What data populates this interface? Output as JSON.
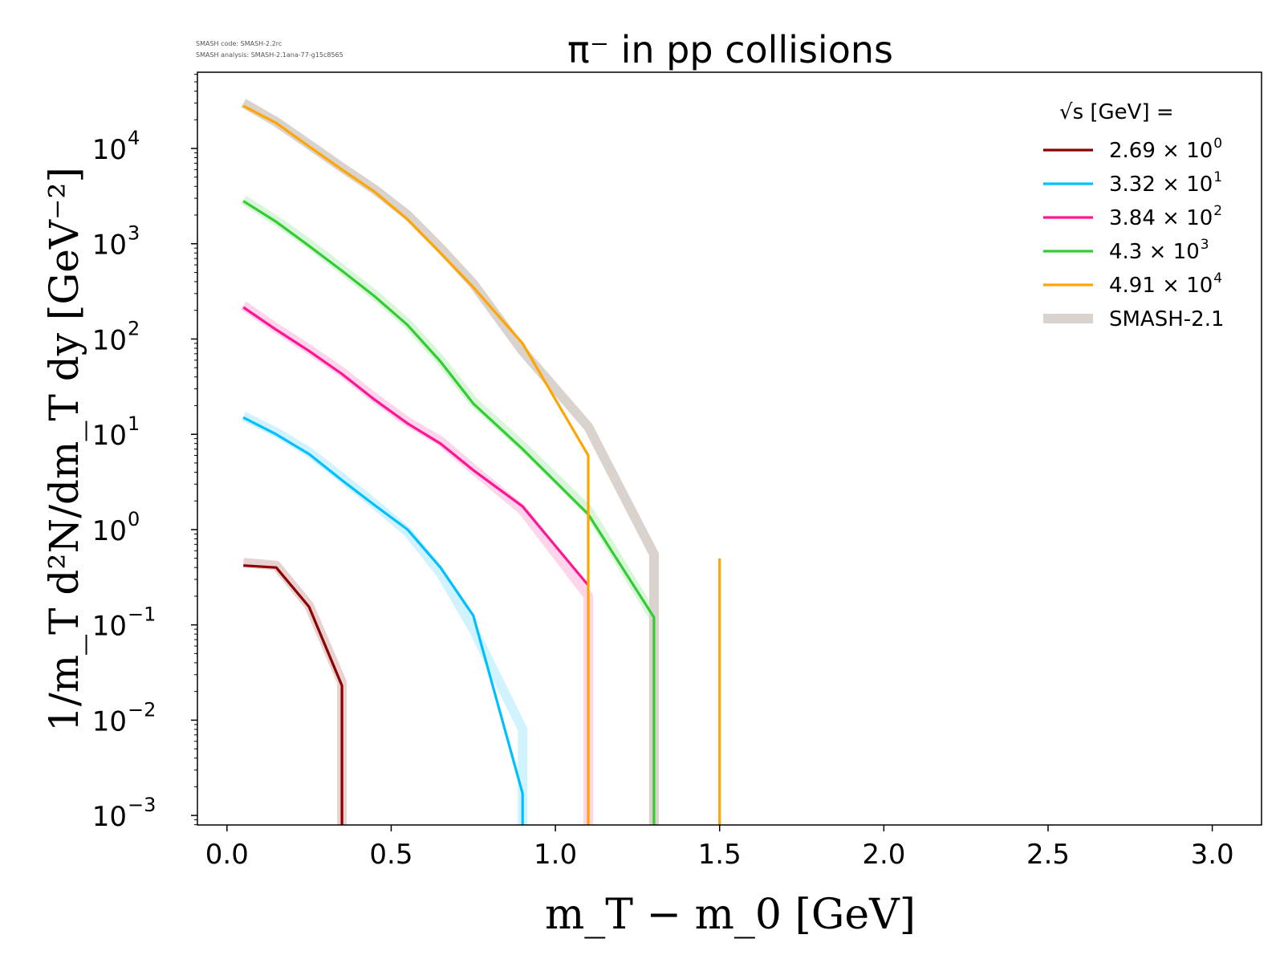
{
  "meta": {
    "code_line": "SMASH code:      SMASH-2.2rc",
    "analysis_line": "SMASH analysis: SMASH-2.1ana-77-g15c8565"
  },
  "chart_data": {
    "type": "line",
    "title": "π⁻ in pp collisions",
    "xlabel": "m_T − m_0 [GeV]",
    "ylabel": "1/m_T d²N/dm_T dy [GeV⁻²]",
    "xlim": [
      -0.09,
      3.15
    ],
    "ylim_log10": [
      -3.1,
      4.8
    ],
    "yscale": "log",
    "grid": false,
    "legend_position": "top-right",
    "legend_title": "√s [GeV] =",
    "x_ticks": [
      "0.0",
      "0.5",
      "1.0",
      "1.5",
      "2.0",
      "2.5",
      "3.0"
    ],
    "y_ticks": [
      {
        "base": "10",
        "exp": "4"
      },
      {
        "base": "10",
        "exp": "3"
      },
      {
        "base": "10",
        "exp": "2"
      },
      {
        "base": "10",
        "exp": "1"
      },
      {
        "base": "10",
        "exp": "0"
      },
      {
        "base": "10",
        "exp": "−1"
      },
      {
        "base": "10",
        "exp": "−2"
      },
      {
        "base": "10",
        "exp": "−3"
      }
    ],
    "reference_name": "SMASH-2.1",
    "reference_color": "#d9d2cd",
    "series": [
      {
        "name": "2.69 × 10⁰",
        "legend_mantissa": "2.69",
        "legend_exp": "0",
        "color": "#8b0000",
        "x": [
          0.05,
          0.15,
          0.25,
          0.35,
          0.35
        ],
        "y": [
          0.42,
          0.4,
          0.155,
          0.023,
          0.0008
        ],
        "ref_x": [
          0.05,
          0.15,
          0.25,
          0.35,
          0.35
        ],
        "ref_y": [
          0.45,
          0.42,
          0.16,
          0.025,
          0.0008
        ]
      },
      {
        "name": "3.32 × 10¹",
        "legend_mantissa": "3.32",
        "legend_exp": "1",
        "color": "#00bfff",
        "x": [
          0.05,
          0.15,
          0.25,
          0.35,
          0.45,
          0.55,
          0.65,
          0.75,
          0.9,
          0.9
        ],
        "y": [
          15,
          10,
          6.2,
          3.3,
          1.8,
          1.0,
          0.4,
          0.125,
          0.0017,
          0.0008
        ],
        "ref_x": [
          0.05,
          0.15,
          0.25,
          0.35,
          0.45,
          0.55,
          0.65,
          0.75,
          0.9,
          0.9
        ],
        "ref_y": [
          15.5,
          10.5,
          6.5,
          3.5,
          1.85,
          0.95,
          0.35,
          0.09,
          0.008,
          0.0008
        ]
      },
      {
        "name": "3.84 × 10²",
        "legend_mantissa": "3.84",
        "legend_exp": "2",
        "color": "#ff1493",
        "x": [
          0.05,
          0.15,
          0.25,
          0.35,
          0.45,
          0.55,
          0.65,
          0.75,
          0.9,
          1.1
        ],
        "y": [
          215,
          125,
          75,
          43,
          23,
          13,
          8.0,
          4.2,
          1.75,
          0.26
        ],
        "ref_x": [
          0.05,
          0.15,
          0.25,
          0.35,
          0.45,
          0.55,
          0.65,
          0.75,
          0.9,
          1.1,
          1.1
        ],
        "ref_y": [
          225,
          130,
          78,
          45,
          24,
          13.5,
          8.5,
          4.3,
          1.6,
          0.2,
          0.0008
        ]
      },
      {
        "name": "4.3 × 10³",
        "legend_mantissa": "4.3",
        "legend_exp": "3",
        "color": "#32cd32",
        "x": [
          0.05,
          0.15,
          0.25,
          0.35,
          0.45,
          0.55,
          0.65,
          0.75,
          0.9,
          1.1,
          1.3,
          1.3
        ],
        "y": [
          2800,
          1700,
          950,
          520,
          280,
          140,
          58,
          21,
          7.0,
          1.45,
          0.12,
          0.0008
        ],
        "ref_x": [
          0.05,
          0.15,
          0.25,
          0.35,
          0.45,
          0.55,
          0.65,
          0.75,
          0.9,
          1.1,
          1.3,
          1.3
        ],
        "ref_y": [
          2900,
          1750,
          1000,
          540,
          290,
          145,
          60,
          22,
          7.5,
          1.6,
          0.12,
          0.0008
        ]
      },
      {
        "name": "4.91 × 10⁴",
        "legend_mantissa": "4.91",
        "legend_exp": "4",
        "color": "#ffa500",
        "x": [
          0.05,
          0.15,
          0.25,
          0.35,
          0.45,
          0.55,
          0.65,
          0.75,
          0.9,
          1.1,
          1.1
        ],
        "y": [
          28000,
          18500,
          10500,
          6000,
          3500,
          1800,
          800,
          350,
          90,
          6.0,
          0.0008
        ],
        "extra_x": [
          1.5,
          1.5
        ],
        "extra_y": [
          0.5,
          0.0008
        ],
        "ref_x": [
          0.05,
          0.15,
          0.25,
          0.35,
          0.45,
          0.55,
          0.65,
          0.75,
          0.9,
          1.1,
          1.3,
          1.3
        ],
        "ref_y": [
          30000,
          19000,
          11000,
          6300,
          3700,
          2000,
          900,
          380,
          75,
          12,
          0.55,
          0.0008
        ]
      }
    ]
  }
}
